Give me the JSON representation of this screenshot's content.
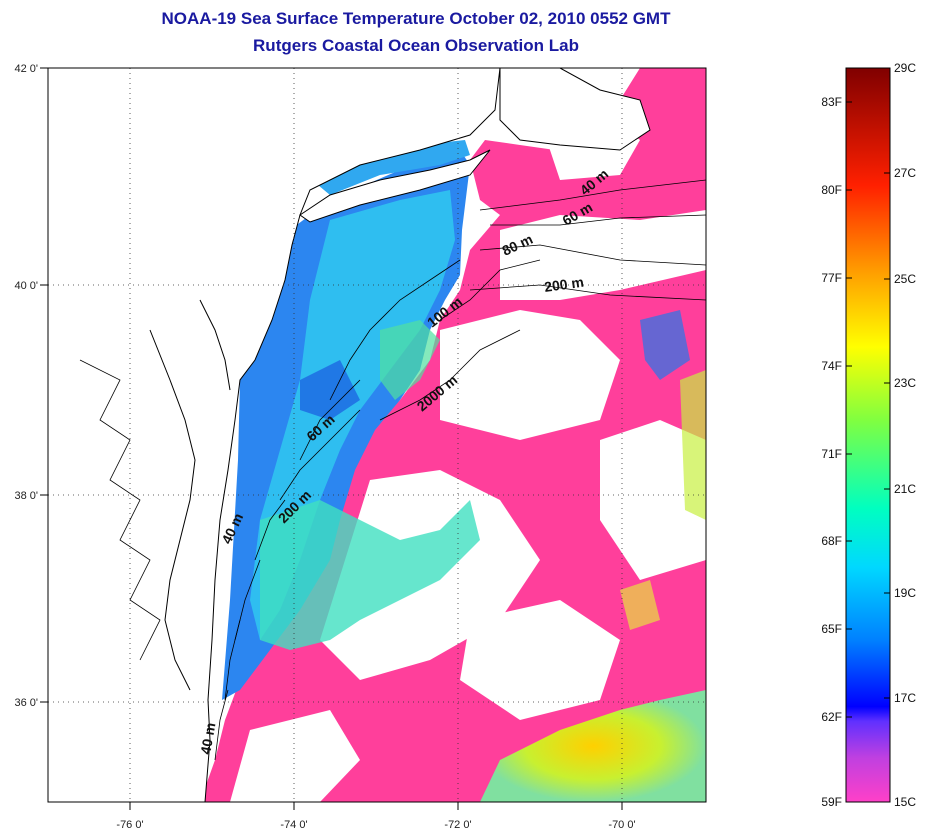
{
  "title": {
    "line1": "NOAA-19 Sea Surface Temperature October 02, 2010 0552 GMT",
    "line2": "Rutgers Coastal Ocean Observation Lab"
  },
  "map": {
    "lon_ticks": [
      "-76 0'",
      "-74 0'",
      "-72 0'",
      "-70 0'"
    ],
    "lat_ticks": [
      "42 0'",
      "40 0'",
      "38 0'",
      "36 0'"
    ],
    "contour_labels": [
      {
        "id": "c40a",
        "text": "40 m"
      },
      {
        "id": "c60a",
        "text": "60 m"
      },
      {
        "id": "c80",
        "text": "80 m"
      },
      {
        "id": "c200a",
        "text": "200 m"
      },
      {
        "id": "c100",
        "text": "100 m"
      },
      {
        "id": "c2000",
        "text": "2000 m"
      },
      {
        "id": "c60b",
        "text": "60 m"
      },
      {
        "id": "c200b",
        "text": "200 m"
      },
      {
        "id": "c40b",
        "text": "40 m"
      },
      {
        "id": "c40c",
        "text": "40 m"
      }
    ],
    "colors": {
      "land": "#ffffff",
      "cloud": "#ff3f9b",
      "coastline": "#000000"
    }
  },
  "colorbar": {
    "celsius_labels": [
      "29C",
      "27C",
      "25C",
      "23C",
      "21C",
      "19C",
      "17C",
      "15C"
    ],
    "fahrenheit_labels": [
      "83F",
      "80F",
      "77F",
      "74F",
      "71F",
      "68F",
      "65F",
      "62F",
      "59F"
    ],
    "stops": [
      "#ff3fc0",
      "#8020ff",
      "#0000ff",
      "#00a0ff",
      "#00ffe0",
      "#80ff40",
      "#ffff00",
      "#ffa000",
      "#ff2000",
      "#800000"
    ]
  }
}
